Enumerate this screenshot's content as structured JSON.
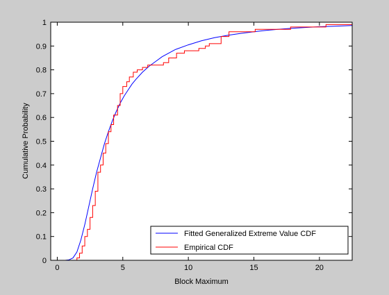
{
  "chart_data": {
    "type": "line",
    "title": "",
    "xlabel": "Block Maximum",
    "ylabel": "Cumulative Probability",
    "xlim": [
      -0.5,
      22.5
    ],
    "ylim": [
      0,
      1
    ],
    "x_ticks": [
      0,
      5,
      10,
      15,
      20
    ],
    "y_ticks": [
      0,
      0.1,
      0.2,
      0.3,
      0.4,
      0.5,
      0.6,
      0.7,
      0.8,
      0.9,
      1
    ],
    "grid": false,
    "legend_position": "bottom-right",
    "series": [
      {
        "name": "Fitted Generalized Extreme Value CDF",
        "color": "#0000ff",
        "style": "smooth",
        "x": [
          0.3,
          0.6,
          0.9,
          1.2,
          1.5,
          1.8,
          2.1,
          2.4,
          2.7,
          3.0,
          3.3,
          3.6,
          3.9,
          4.2,
          4.5,
          4.8,
          5.1,
          5.4,
          5.7,
          6.0,
          6.5,
          7.0,
          7.5,
          8.0,
          8.5,
          9.0,
          10.0,
          11.0,
          12.0,
          13.0,
          14.0,
          15.0,
          16.0,
          17.0,
          18.0,
          19.0,
          20.0,
          21.0,
          22.0,
          22.5
        ],
        "y": [
          0.0,
          0.0,
          0.002,
          0.01,
          0.035,
          0.085,
          0.15,
          0.225,
          0.3,
          0.37,
          0.43,
          0.49,
          0.54,
          0.585,
          0.625,
          0.66,
          0.69,
          0.715,
          0.74,
          0.76,
          0.79,
          0.815,
          0.835,
          0.855,
          0.87,
          0.885,
          0.905,
          0.922,
          0.935,
          0.945,
          0.953,
          0.96,
          0.966,
          0.971,
          0.975,
          0.978,
          0.981,
          0.983,
          0.985,
          0.986
        ]
      },
      {
        "name": "Empirical CDF",
        "color": "#ff0000",
        "style": "step",
        "x": [
          1.3,
          1.5,
          1.7,
          1.9,
          2.1,
          2.3,
          2.5,
          2.7,
          2.9,
          3.1,
          3.3,
          3.5,
          3.7,
          3.9,
          4.1,
          4.3,
          4.6,
          4.8,
          5.0,
          5.3,
          5.5,
          5.8,
          6.1,
          6.5,
          6.9,
          8.1,
          8.5,
          9.1,
          9.7,
          10.8,
          11.3,
          11.6,
          12.5,
          13.1,
          15.1,
          17.8,
          20.5
        ],
        "y": [
          0.0,
          0.01,
          0.03,
          0.06,
          0.1,
          0.13,
          0.18,
          0.23,
          0.29,
          0.37,
          0.4,
          0.45,
          0.49,
          0.54,
          0.57,
          0.61,
          0.65,
          0.7,
          0.73,
          0.75,
          0.77,
          0.79,
          0.8,
          0.81,
          0.82,
          0.83,
          0.85,
          0.87,
          0.88,
          0.89,
          0.9,
          0.91,
          0.94,
          0.96,
          0.97,
          0.98,
          0.99
        ]
      }
    ],
    "legend_entries": [
      "Fitted Generalized Extreme Value CDF",
      "Empirical CDF"
    ]
  }
}
